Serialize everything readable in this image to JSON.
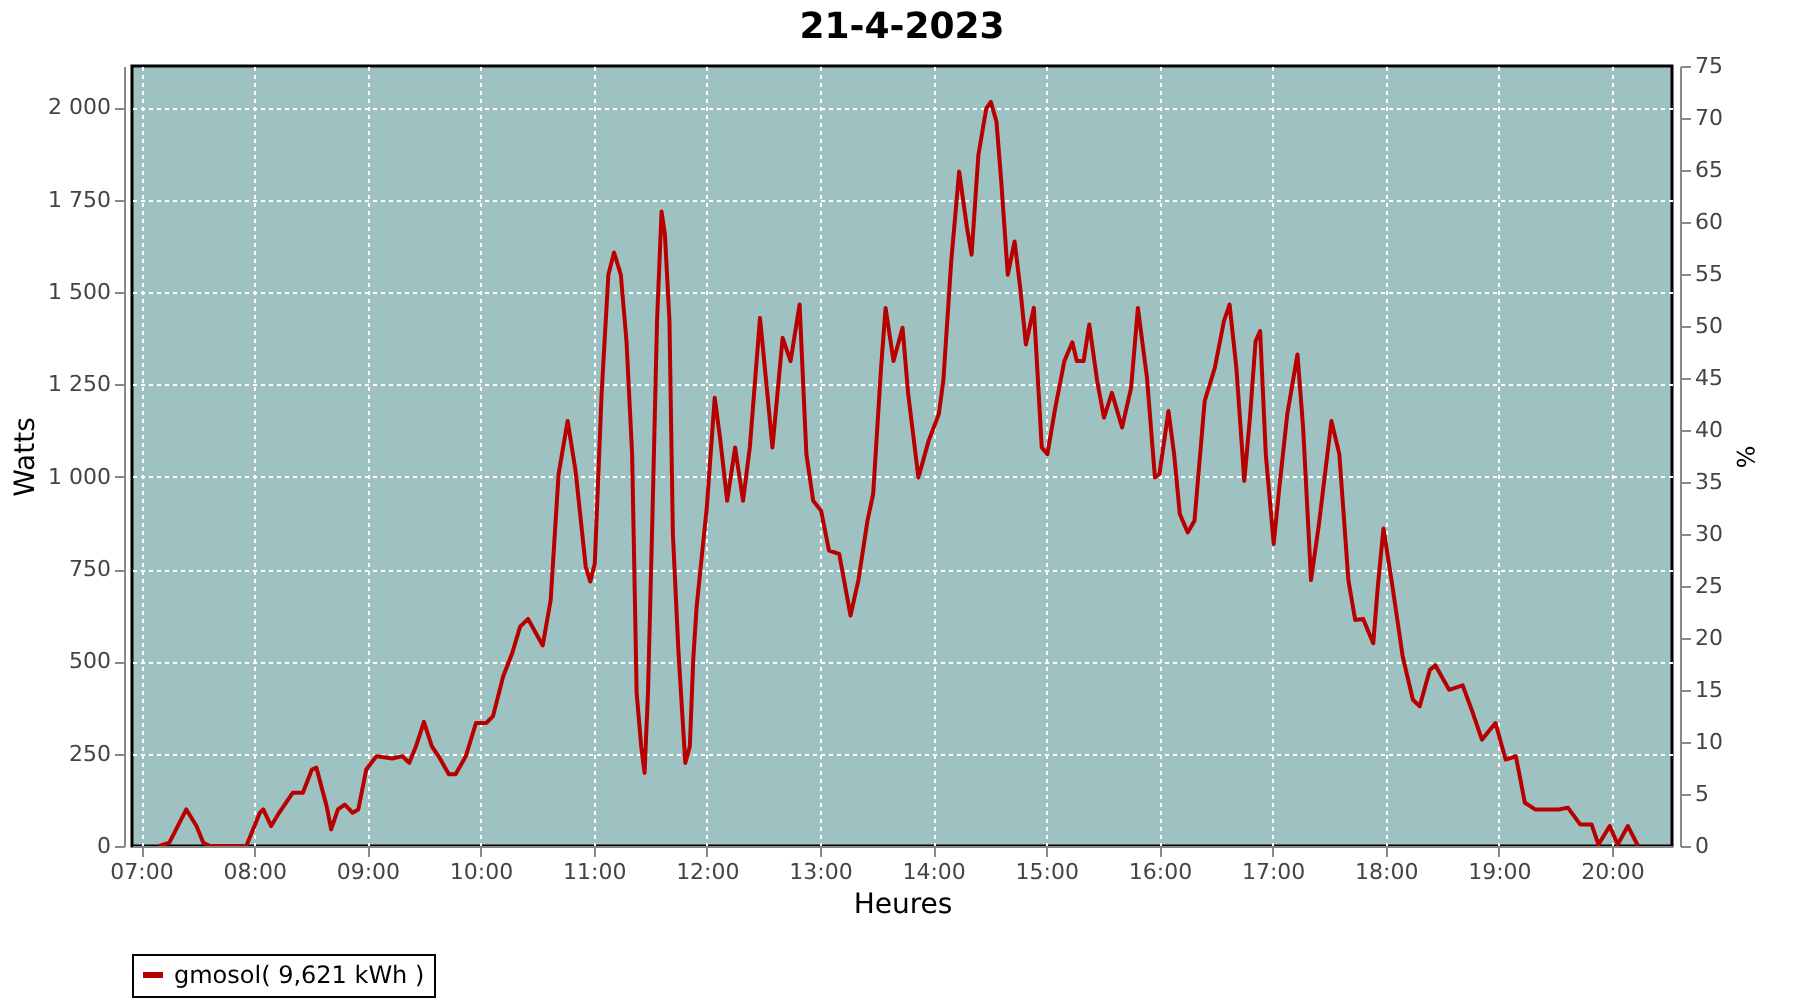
{
  "chart_data": {
    "type": "line",
    "title": "21-4-2023",
    "xlabel": "Heures",
    "ylabel": "Watts",
    "y2label": "%",
    "xlim": [
      6.92,
      20.53
    ],
    "xticks": [
      {
        "value": 7,
        "label": "07:00"
      },
      {
        "value": 8,
        "label": "08:00"
      },
      {
        "value": 9,
        "label": "09:00"
      },
      {
        "value": 10,
        "label": "10:00"
      },
      {
        "value": 11,
        "label": "11:00"
      },
      {
        "value": 12,
        "label": "12:00"
      },
      {
        "value": 13,
        "label": "13:00"
      },
      {
        "value": 14,
        "label": "14:00"
      },
      {
        "value": 15,
        "label": "15:00"
      },
      {
        "value": 16,
        "label": "16:00"
      },
      {
        "value": 17,
        "label": "17:00"
      },
      {
        "value": 18,
        "label": "18:00"
      },
      {
        "value": 19,
        "label": "19:00"
      },
      {
        "value": 20,
        "label": "20:00"
      }
    ],
    "ylim": [
      0,
      2112
    ],
    "yticks": [
      0,
      250,
      500,
      750,
      {
        "value": 1000,
        "label": "1 000"
      },
      {
        "value": 1250,
        "label": "1 250"
      },
      {
        "value": 1500,
        "label": "1 500"
      },
      {
        "value": 1750,
        "label": "1 750"
      },
      {
        "value": 2000,
        "label": "2 000"
      }
    ],
    "y2lim": [
      0,
      75
    ],
    "y2ticks": [
      0,
      5,
      10,
      15,
      20,
      25,
      30,
      35,
      40,
      45,
      50,
      55,
      60,
      65,
      70,
      75
    ],
    "grid": true,
    "legend": "bottom",
    "marker": "none",
    "line_style": "solid",
    "series": [
      {
        "name": "gmosol( 9,621 kWh )",
        "color": "#b80000",
        "x": [
          7.16,
          7.25,
          7.4,
          7.49,
          7.55,
          7.61,
          7.93,
          8.05,
          8.08,
          8.15,
          8.22,
          8.34,
          8.43,
          8.51,
          8.55,
          8.64,
          8.68,
          8.74,
          8.8,
          8.87,
          8.92,
          8.99,
          9.08,
          9.22,
          9.31,
          9.37,
          9.43,
          9.5,
          9.57,
          9.63,
          9.72,
          9.78,
          9.87,
          9.96,
          10.05,
          10.11,
          10.2,
          10.28,
          10.35,
          10.42,
          10.49,
          10.55,
          10.62,
          10.69,
          10.77,
          10.84,
          10.93,
          10.97,
          11.01,
          11.07,
          11.13,
          11.18,
          11.24,
          11.29,
          11.34,
          11.38,
          11.42,
          11.45,
          11.48,
          11.52,
          11.56,
          11.6,
          11.63,
          11.67,
          11.7,
          11.75,
          11.81,
          11.85,
          11.88,
          11.91,
          12.0,
          12.07,
          12.12,
          12.18,
          12.25,
          12.32,
          12.38,
          12.47,
          12.53,
          12.58,
          12.67,
          12.74,
          12.82,
          12.88,
          12.94,
          13.01,
          13.08,
          13.17,
          13.27,
          13.34,
          13.42,
          13.47,
          13.54,
          13.58,
          13.65,
          13.73,
          13.78,
          13.87,
          13.96,
          14.05,
          14.09,
          14.16,
          14.23,
          14.3,
          14.34,
          14.4,
          14.47,
          14.51,
          14.56,
          14.6,
          14.66,
          14.72,
          14.77,
          14.82,
          14.89,
          14.96,
          15.01,
          15.08,
          15.16,
          15.23,
          15.27,
          15.33,
          15.38,
          15.45,
          15.51,
          15.58,
          15.67,
          15.75,
          15.81,
          15.89,
          15.96,
          16.0,
          16.08,
          16.13,
          16.18,
          16.25,
          16.31,
          16.4,
          16.49,
          16.57,
          16.62,
          16.68,
          16.75,
          16.8,
          16.85,
          16.89,
          16.94,
          17.01,
          17.06,
          17.13,
          17.22,
          17.27,
          17.34,
          17.41,
          17.52,
          17.59,
          17.67,
          17.73,
          17.8,
          17.89,
          17.93,
          17.98,
          18.06,
          18.15,
          18.24,
          18.3,
          18.39,
          18.44,
          18.56,
          18.68,
          18.77,
          18.85,
          18.97,
          19.06,
          19.15,
          19.23,
          19.32,
          19.44,
          19.53,
          19.61,
          19.72,
          19.82,
          19.88,
          19.98,
          20.05,
          20.14,
          20.23
        ],
        "values": [
          0,
          9,
          99,
          54,
          9,
          0,
          0,
          90,
          99,
          54,
          90,
          144,
          144,
          207,
          212,
          108,
          45,
          99,
          112,
          90,
          99,
          207,
          243,
          237,
          243,
          225,
          270,
          336,
          270,
          243,
          194,
          194,
          243,
          333,
          333,
          351,
          459,
          522,
          594,
          615,
          576,
          543,
          666,
          1007,
          1151,
          1016,
          756,
          716,
          765,
          1223,
          1547,
          1607,
          1547,
          1367,
          1061,
          414,
          270,
          198,
          414,
          899,
          1421,
          1718,
          1655,
          1421,
          846,
          522,
          225,
          270,
          504,
          648,
          917,
          1214,
          1097,
          935,
          1079,
          935,
          1079,
          1430,
          1241,
          1079,
          1376,
          1313,
          1466,
          1061,
          935,
          908,
          800,
          791,
          624,
          720,
          881,
          953,
          1295,
          1457,
          1313,
          1403,
          1223,
          998,
          1097,
          1169,
          1259,
          1583,
          1826,
          1673,
          1601,
          1871,
          1997,
          2015,
          1961,
          1808,
          1547,
          1637,
          1511,
          1358,
          1457,
          1079,
          1061,
          1187,
          1313,
          1364,
          1313,
          1313,
          1412,
          1259,
          1160,
          1227,
          1133,
          1241,
          1457,
          1268,
          998,
          1007,
          1178,
          1061,
          899,
          849,
          881,
          1205,
          1295,
          1421,
          1466,
          1295,
          989,
          1160,
          1367,
          1394,
          1061,
          818,
          971,
          1169,
          1331,
          1133,
          720,
          872,
          1151,
          1061,
          720,
          612,
          615,
          549,
          702,
          860,
          702,
          513,
          396,
          378,
          477,
          489,
          423,
          435,
          360,
          288,
          333,
          234,
          243,
          117,
          99,
          99,
          99,
          104,
          58,
          58,
          4,
          54,
          4,
          54,
          0
        ]
      }
    ]
  }
}
